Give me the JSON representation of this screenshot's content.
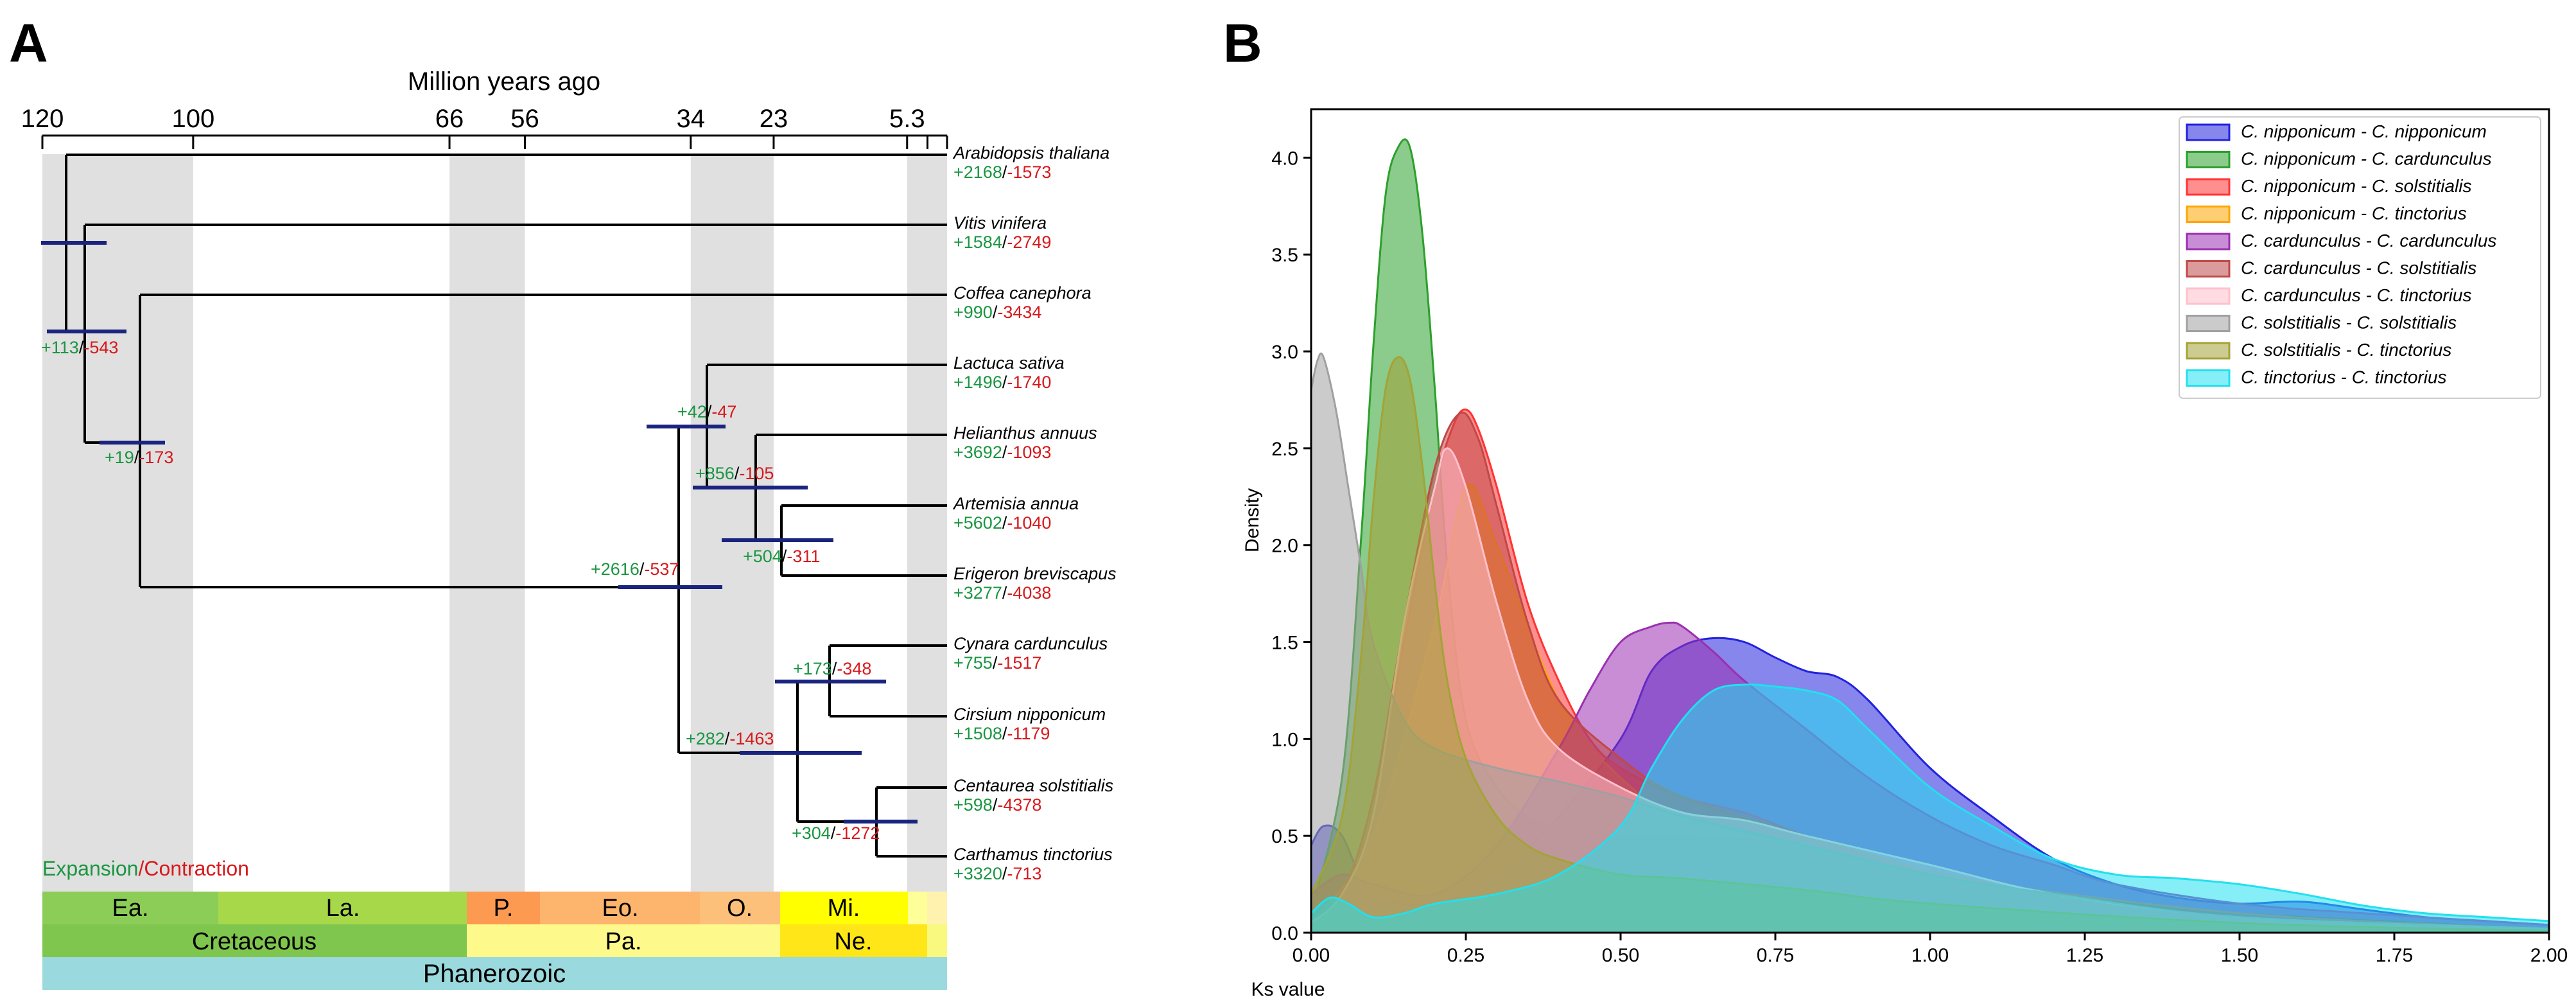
{
  "panelA": {
    "label": "A",
    "axis_title": "Million years ago",
    "ticks": [
      "120",
      "100",
      "66",
      "56",
      "34",
      "23",
      "5.3"
    ],
    "tick_values": [
      120,
      100,
      66,
      56,
      34,
      23,
      5.3
    ],
    "minor_ticks": [
      2.6,
      0
    ],
    "shaded_bands": [
      [
        120,
        100
      ],
      [
        66,
        56
      ],
      [
        34,
        23
      ],
      [
        5.3,
        2.6
      ],
      [
        2.6,
        0
      ]
    ],
    "legend": {
      "expansion": "Expansion",
      "separator": "/",
      "contraction": "Contraction"
    },
    "species": [
      {
        "name": "Arabidopsis thaliana",
        "gain": "+2168",
        "loss": "-1573"
      },
      {
        "name": "Vitis vinifera",
        "gain": "+1584",
        "loss": "-2749"
      },
      {
        "name": "Coffea canephora",
        "gain": "+990",
        "loss": "-3434"
      },
      {
        "name": "Lactuca sativa",
        "gain": "+1496",
        "loss": "-1740"
      },
      {
        "name": "Helianthus annuus",
        "gain": "+3692",
        "loss": "-1093"
      },
      {
        "name": "Artemisia annua",
        "gain": "+5602",
        "loss": "-1040"
      },
      {
        "name": "Erigeron breviscapus",
        "gain": "+3277",
        "loss": "-4038"
      },
      {
        "name": "Cynara cardunculus",
        "gain": "+755",
        "loss": "-1517"
      },
      {
        "name": "Cirsium nipponicum",
        "gain": "+1508",
        "loss": "-1179"
      },
      {
        "name": "Centaurea solstitialis",
        "gain": "+598",
        "loss": "-4378"
      },
      {
        "name": "Carthamus tinctorius",
        "gain": "+3320",
        "loss": "-713"
      }
    ],
    "nodes": [
      {
        "gain": "+113",
        "loss": "-543"
      },
      {
        "gain": "+19",
        "loss": "-173"
      },
      {
        "gain": "+2616",
        "loss": "-537"
      },
      {
        "gain": "+42",
        "loss": "-47"
      },
      {
        "gain": "+856",
        "loss": "-105"
      },
      {
        "gain": "+504",
        "loss": "-311"
      },
      {
        "gain": "+282",
        "loss": "-1463"
      },
      {
        "gain": "+173",
        "loss": "-348"
      },
      {
        "gain": "+304",
        "loss": "-1272"
      }
    ],
    "timescale": {
      "epochs": [
        "Ea.",
        "La.",
        "P.",
        "Eo.",
        "O.",
        "Mi.",
        ""
      ],
      "periods": [
        "Cretaceous",
        "Pa.",
        "Ne."
      ],
      "eon": "Phanerozoic"
    }
  },
  "panelB": {
    "label": "B",
    "xlabel": "Ks value",
    "ylabel": "Density",
    "xticks": [
      "0.00",
      "0.25",
      "0.50",
      "0.75",
      "1.00",
      "1.25",
      "1.50",
      "1.75",
      "2.00"
    ],
    "yticks": [
      "0.0",
      "0.5",
      "1.0",
      "1.5",
      "2.0",
      "2.5",
      "3.0",
      "3.5",
      "4.0"
    ],
    "legend": [
      {
        "a": "C. nipponicum",
        "sep": " - ",
        "b": "C. nipponicum"
      },
      {
        "a": "C. nipponicum",
        "sep": " - ",
        "b": "C. cardunculus"
      },
      {
        "a": "C. nipponicum",
        "sep": " - ",
        "b": "C. solstitialis"
      },
      {
        "a": "C. nipponicum",
        "sep": " - ",
        "b": "C. tinctorius"
      },
      {
        "a": "C. cardunculus",
        "sep": " - ",
        "b": "C. cardunculus"
      },
      {
        "a": "C. cardunculus",
        "sep": " - ",
        "b": "C. solstitialis"
      },
      {
        "a": "C. cardunculus",
        "sep": " - ",
        "b": "C. tinctorius"
      },
      {
        "a": "C. solstitialis",
        "sep": " - ",
        "b": "C. solstitialis"
      },
      {
        "a": "C. solstitialis",
        "sep": " - ",
        "b": "C. tinctorius"
      },
      {
        "a": "C. tinctorius",
        "sep": " - ",
        "b": "C. tinctorius"
      }
    ]
  },
  "colors": {
    "gain": "#1a9641",
    "loss": "#d7191c",
    "node_bar": "#1a237e",
    "band": "#e0e0e0"
  },
  "chart_data": [
    {
      "type": "tree",
      "title": "Million years ago",
      "axis": "time (Ma)",
      "tips": [
        "Arabidopsis thaliana",
        "Vitis vinifera",
        "Coffea canephora",
        "Lactuca sativa",
        "Helianthus annuus",
        "Artemisia annua",
        "Erigeron breviscapus",
        "Cynara cardunculus",
        "Cirsium nipponicum",
        "Centaurea solstitialis",
        "Carthamus tinctorius"
      ],
      "node_ages_ma": [
        115,
        111,
        103,
        39,
        32,
        27,
        21,
        19,
        13,
        9
      ]
    },
    {
      "type": "area",
      "title": "",
      "xlabel": "Ks value",
      "ylabel": "Density",
      "xlim": [
        0,
        2
      ],
      "ylim": [
        0,
        4.25
      ],
      "series": [
        {
          "name": "C. nipponicum - C. nipponicum",
          "color": "#2222dd",
          "x": [
            0,
            0.02,
            0.05,
            0.1,
            0.2,
            0.3,
            0.4,
            0.5,
            0.55,
            0.6,
            0.65,
            0.7,
            0.75,
            0.8,
            0.85,
            0.9,
            1.0,
            1.1,
            1.2,
            1.3,
            1.4,
            1.5,
            1.6,
            1.7,
            1.8,
            1.9,
            2.0
          ],
          "y": [
            0.45,
            0.55,
            0.5,
            0.2,
            0.15,
            0.3,
            0.6,
            1.0,
            1.35,
            1.48,
            1.52,
            1.5,
            1.42,
            1.35,
            1.32,
            1.2,
            0.85,
            0.6,
            0.38,
            0.25,
            0.18,
            0.15,
            0.16,
            0.12,
            0.08,
            0.06,
            0.04
          ]
        },
        {
          "name": "C. nipponicum - C. cardunculus",
          "color": "#2ca02c",
          "x": [
            0,
            0.05,
            0.08,
            0.1,
            0.12,
            0.14,
            0.16,
            0.18,
            0.2,
            0.22,
            0.25,
            0.3,
            0.35,
            0.4,
            0.5,
            0.6,
            0.8,
            1.0,
            1.2,
            1.5,
            2.0
          ],
          "y": [
            0.1,
            0.8,
            2.0,
            3.0,
            3.8,
            4.05,
            4.05,
            3.6,
            2.8,
            1.9,
            1.1,
            0.75,
            0.6,
            0.55,
            0.5,
            0.5,
            0.45,
            0.3,
            0.2,
            0.1,
            0.02
          ]
        },
        {
          "name": "C. nipponicum - C. solstitialis",
          "color": "#ff3333",
          "x": [
            0,
            0.05,
            0.1,
            0.15,
            0.2,
            0.23,
            0.25,
            0.27,
            0.3,
            0.35,
            0.4,
            0.45,
            0.5,
            0.6,
            0.7,
            0.8,
            1.0,
            1.2,
            1.4,
            1.6,
            2.0
          ],
          "y": [
            0.05,
            0.2,
            0.6,
            1.5,
            2.3,
            2.62,
            2.7,
            2.6,
            2.3,
            1.7,
            1.3,
            1.0,
            0.85,
            0.7,
            0.62,
            0.5,
            0.3,
            0.18,
            0.1,
            0.06,
            0.02
          ]
        },
        {
          "name": "C. nipponicum - C. tinctorius",
          "color": "#ffa500",
          "x": [
            0,
            0.1,
            0.2,
            0.25,
            0.3,
            0.4,
            0.5,
            0.6,
            0.8,
            1.0,
            1.5,
            2.0
          ],
          "y": [
            0.05,
            0.5,
            1.6,
            2.3,
            2.0,
            1.2,
            0.8,
            0.6,
            0.45,
            0.3,
            0.1,
            0.02
          ]
        },
        {
          "name": "C. cardunculus - C. cardunculus",
          "color": "#9b30b0",
          "x": [
            0,
            0.05,
            0.1,
            0.2,
            0.3,
            0.4,
            0.45,
            0.5,
            0.55,
            0.58,
            0.6,
            0.65,
            0.7,
            0.8,
            0.9,
            1.0,
            1.1,
            1.2,
            1.3,
            1.5,
            1.7,
            2.0
          ],
          "y": [
            0.2,
            0.3,
            0.25,
            0.2,
            0.45,
            0.95,
            1.25,
            1.5,
            1.58,
            1.6,
            1.58,
            1.45,
            1.3,
            1.05,
            0.8,
            0.6,
            0.45,
            0.35,
            0.25,
            0.15,
            0.1,
            0.04
          ]
        },
        {
          "name": "C. cardunculus - C. solstitialis",
          "color": "#c04848",
          "x": [
            0,
            0.05,
            0.1,
            0.15,
            0.2,
            0.24,
            0.27,
            0.3,
            0.35,
            0.4,
            0.5,
            0.6,
            0.8,
            1.0,
            1.2,
            1.5,
            2.0
          ],
          "y": [
            0.05,
            0.2,
            0.7,
            1.6,
            2.4,
            2.68,
            2.55,
            2.2,
            1.6,
            1.2,
            0.9,
            0.7,
            0.5,
            0.32,
            0.2,
            0.08,
            0.02
          ]
        },
        {
          "name": "C. cardunculus - C. tinctorius",
          "color": "#ffc0cb",
          "x": [
            0,
            0.05,
            0.1,
            0.15,
            0.2,
            0.22,
            0.25,
            0.3,
            0.35,
            0.4,
            0.5,
            0.6,
            0.7,
            0.8,
            1.0,
            1.2,
            1.5,
            2.0
          ],
          "y": [
            0.05,
            0.2,
            0.6,
            1.6,
            2.3,
            2.5,
            2.3,
            1.7,
            1.2,
            0.95,
            0.75,
            0.62,
            0.58,
            0.5,
            0.35,
            0.2,
            0.08,
            0.02
          ]
        },
        {
          "name": "C. solstitialis - C. solstitialis",
          "color": "#a0a0a0",
          "x": [
            0,
            0.01,
            0.02,
            0.04,
            0.06,
            0.08,
            0.1,
            0.15,
            0.2,
            0.3,
            0.4,
            0.5,
            0.6,
            0.8,
            1.0,
            1.2,
            1.5,
            2.0
          ],
          "y": [
            2.8,
            2.95,
            2.97,
            2.7,
            2.3,
            1.9,
            1.5,
            1.1,
            0.95,
            0.85,
            0.78,
            0.7,
            0.6,
            0.45,
            0.3,
            0.2,
            0.08,
            0.02
          ]
        },
        {
          "name": "C. solstitialis - C. tinctorius",
          "color": "#a3a337",
          "x": [
            0,
            0.05,
            0.08,
            0.1,
            0.12,
            0.14,
            0.16,
            0.18,
            0.2,
            0.22,
            0.25,
            0.3,
            0.35,
            0.4,
            0.5,
            0.6,
            0.8,
            1.0,
            1.5,
            2.0
          ],
          "y": [
            0.2,
            0.6,
            1.4,
            2.2,
            2.8,
            2.97,
            2.85,
            2.4,
            1.8,
            1.3,
            0.9,
            0.6,
            0.45,
            0.38,
            0.3,
            0.28,
            0.22,
            0.15,
            0.05,
            0.01
          ]
        },
        {
          "name": "C. tinctorius - C. tinctorius",
          "color": "#22e0ee",
          "x": [
            0,
            0.03,
            0.06,
            0.1,
            0.15,
            0.2,
            0.3,
            0.4,
            0.5,
            0.55,
            0.6,
            0.65,
            0.7,
            0.75,
            0.8,
            0.85,
            0.9,
            1.0,
            1.1,
            1.2,
            1.3,
            1.4,
            1.5,
            1.6,
            1.7,
            1.8,
            1.9,
            2.0
          ],
          "y": [
            0.1,
            0.18,
            0.15,
            0.08,
            0.1,
            0.15,
            0.2,
            0.3,
            0.55,
            0.85,
            1.1,
            1.25,
            1.28,
            1.27,
            1.25,
            1.2,
            1.05,
            0.75,
            0.55,
            0.38,
            0.3,
            0.28,
            0.25,
            0.2,
            0.14,
            0.1,
            0.08,
            0.06
          ]
        }
      ]
    }
  ]
}
